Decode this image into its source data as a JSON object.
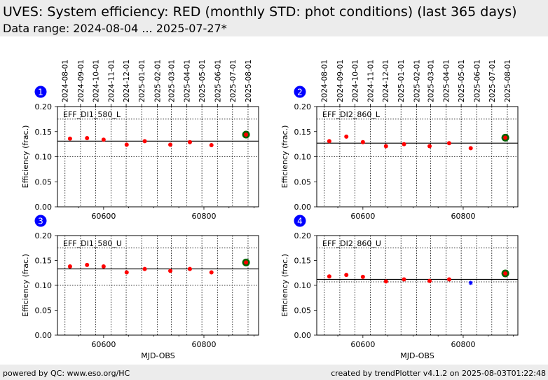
{
  "header": {
    "title": "UVES: System efficiency: RED (monthly STD: phot conditions) (last 365 days)",
    "subtitle": "Data range: 2024-08-04 ... 2025-07-27*"
  },
  "footer": {
    "left": "powered by QC: www.eso.org/HC",
    "right": "created by trendPlotter v4.1.2 on 2025-08-03T01:22:48"
  },
  "colors": {
    "point": "#ff0000",
    "latest_ring": "#006400",
    "outlier": "#0000ff",
    "badge": "#0000ff"
  },
  "chart_data": [
    {
      "type": "scatter",
      "badge": "1",
      "label": "EFF_DI1_580_L",
      "ylabel": "Efficiency (frac.)",
      "xlabel": "",
      "ylim": [
        0,
        0.2
      ],
      "xlim": [
        60508,
        60909
      ],
      "yticks": [
        "0.00",
        "0.05",
        "0.10",
        "0.15",
        "0.20"
      ],
      "xticks": [
        "60600",
        "60800"
      ],
      "top_ticks": [
        "2024-08-01",
        "2024-09-01",
        "2024-10-01",
        "2024-11-01",
        "2024-12-01",
        "2025-01-01",
        "2025-02-01",
        "2025-03-01",
        "2025-04-01",
        "2025-05-01",
        "2025-06-01",
        "2025-07-01",
        "2025-08-01"
      ],
      "median": 0.131,
      "thresholds": [
        0.175,
        0.1
      ],
      "points": [
        {
          "x": 60533,
          "y": 0.136
        },
        {
          "x": 60567,
          "y": 0.137
        },
        {
          "x": 60600,
          "y": 0.134
        },
        {
          "x": 60646,
          "y": 0.124
        },
        {
          "x": 60682,
          "y": 0.131
        },
        {
          "x": 60733,
          "y": 0.124
        },
        {
          "x": 60772,
          "y": 0.129
        },
        {
          "x": 60815,
          "y": 0.123
        }
      ],
      "outliers": [],
      "latest": {
        "x": 60884,
        "y": 0.144
      }
    },
    {
      "type": "scatter",
      "badge": "2",
      "label": "EFF_DI2_860_L",
      "ylabel": "Efficiency (frac.)",
      "xlabel": "",
      "ylim": [
        0,
        0.2
      ],
      "xlim": [
        60508,
        60909
      ],
      "yticks": [
        "0.00",
        "0.05",
        "0.10",
        "0.15",
        "0.20"
      ],
      "xticks": [
        "60600",
        "60800"
      ],
      "top_ticks": [
        "2024-08-01",
        "2024-09-01",
        "2024-10-01",
        "2024-11-01",
        "2024-12-01",
        "2025-01-01",
        "2025-02-01",
        "2025-03-01",
        "2025-04-01",
        "2025-05-01",
        "2025-06-01",
        "2025-07-01",
        "2025-08-01"
      ],
      "median": 0.127,
      "thresholds": [
        0.175,
        0.1
      ],
      "points": [
        {
          "x": 60533,
          "y": 0.131
        },
        {
          "x": 60567,
          "y": 0.14
        },
        {
          "x": 60600,
          "y": 0.129
        },
        {
          "x": 60646,
          "y": 0.121
        },
        {
          "x": 60682,
          "y": 0.125
        },
        {
          "x": 60733,
          "y": 0.121
        },
        {
          "x": 60772,
          "y": 0.127
        },
        {
          "x": 60815,
          "y": 0.117
        }
      ],
      "outliers": [],
      "latest": {
        "x": 60884,
        "y": 0.138
      }
    },
    {
      "type": "scatter",
      "badge": "3",
      "label": "EFF_DI1_580_U",
      "ylabel": "Efficiency (frac.)",
      "xlabel": "MJD-OBS",
      "ylim": [
        0,
        0.2
      ],
      "xlim": [
        60508,
        60909
      ],
      "yticks": [
        "0.00",
        "0.05",
        "0.10",
        "0.15",
        "0.20"
      ],
      "xticks": [
        "60600",
        "60800"
      ],
      "top_ticks": [],
      "median": 0.133,
      "thresholds": [
        0.175,
        0.1
      ],
      "points": [
        {
          "x": 60533,
          "y": 0.138
        },
        {
          "x": 60567,
          "y": 0.141
        },
        {
          "x": 60600,
          "y": 0.138
        },
        {
          "x": 60646,
          "y": 0.126
        },
        {
          "x": 60682,
          "y": 0.133
        },
        {
          "x": 60733,
          "y": 0.129
        },
        {
          "x": 60772,
          "y": 0.133
        },
        {
          "x": 60815,
          "y": 0.126
        }
      ],
      "outliers": [],
      "latest": {
        "x": 60884,
        "y": 0.146
      }
    },
    {
      "type": "scatter",
      "badge": "4",
      "label": "EFF_DI2_860_U",
      "ylabel": "Efficiency (frac.)",
      "xlabel": "MJD-OBS",
      "ylim": [
        0,
        0.2
      ],
      "xlim": [
        60508,
        60909
      ],
      "yticks": [
        "0.00",
        "0.05",
        "0.10",
        "0.15",
        "0.20"
      ],
      "xticks": [
        "60600",
        "60800"
      ],
      "top_ticks": [],
      "median": 0.112,
      "thresholds": [
        0.175,
        0.107
      ],
      "points": [
        {
          "x": 60533,
          "y": 0.118
        },
        {
          "x": 60567,
          "y": 0.121
        },
        {
          "x": 60600,
          "y": 0.117
        },
        {
          "x": 60646,
          "y": 0.108
        },
        {
          "x": 60682,
          "y": 0.112
        },
        {
          "x": 60733,
          "y": 0.109
        },
        {
          "x": 60772,
          "y": 0.112
        }
      ],
      "outliers": [
        {
          "x": 60815,
          "y": 0.105
        }
      ],
      "latest": {
        "x": 60884,
        "y": 0.124
      }
    }
  ]
}
